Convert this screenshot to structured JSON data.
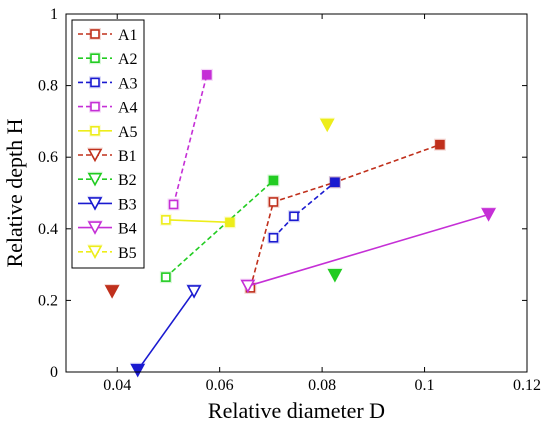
{
  "chart_data": {
    "type": "scatter",
    "xlabel": "Relative diameter D",
    "ylabel": "Relative depth H",
    "xlim": [
      0.03,
      0.12
    ],
    "ylim": [
      0,
      1
    ],
    "xticks": [
      0.04,
      0.06,
      0.08,
      0.1,
      0.12
    ],
    "xtick_labels": [
      "0.04",
      "0.06",
      "0.08",
      "0.1",
      "0.12"
    ],
    "yticks": [
      0,
      0.2,
      0.4,
      0.6,
      0.8,
      1
    ],
    "ytick_labels": [
      "0",
      "0.2",
      "0.4",
      "0.6",
      "0.8",
      "1"
    ],
    "grid": false,
    "legend_position": "top-left",
    "series": [
      {
        "name": "A1",
        "color": "#c0301c",
        "marker": "square",
        "line": "dashed",
        "points": [
          [
            0.066,
            0.235
          ],
          [
            0.0705,
            0.475
          ],
          [
            0.0825,
            0.53
          ],
          [
            0.103,
            0.635
          ]
        ],
        "filled": [
          false,
          false,
          true,
          true
        ]
      },
      {
        "name": "A2",
        "color": "#22cc22",
        "marker": "square",
        "line": "dashed",
        "points": [
          [
            0.0495,
            0.265
          ],
          [
            0.0705,
            0.535
          ]
        ],
        "filled": [
          false,
          true
        ]
      },
      {
        "name": "A3",
        "color": "#1a1ad0",
        "marker": "square",
        "line": "dashed",
        "points": [
          [
            0.0705,
            0.375
          ],
          [
            0.0745,
            0.435
          ],
          [
            0.0825,
            0.53
          ]
        ],
        "filled": [
          false,
          false,
          true
        ]
      },
      {
        "name": "A4",
        "color": "#c52fd6",
        "marker": "square",
        "line": "dashed",
        "points": [
          [
            0.051,
            0.468
          ],
          [
            0.0575,
            0.83
          ]
        ],
        "filled": [
          false,
          true
        ]
      },
      {
        "name": "A5",
        "color": "#eded1a",
        "marker": "square",
        "line": "solid",
        "points": [
          [
            0.0495,
            0.425
          ],
          [
            0.062,
            0.418
          ]
        ],
        "filled": [
          false,
          true
        ]
      },
      {
        "name": "B1",
        "color": "#c0301c",
        "marker": "triangle-down",
        "line": "none",
        "points": [
          [
            0.039,
            0.225
          ]
        ],
        "filled": [
          true
        ]
      },
      {
        "name": "B2",
        "color": "#22cc22",
        "marker": "triangle-down",
        "line": "none",
        "points": [
          [
            0.0825,
            0.27
          ]
        ],
        "filled": [
          true
        ]
      },
      {
        "name": "B3",
        "color": "#1a1ad0",
        "marker": "triangle-down",
        "line": "solid",
        "points": [
          [
            0.044,
            0.005
          ],
          [
            0.055,
            0.225
          ]
        ],
        "filled": [
          true,
          false
        ]
      },
      {
        "name": "B4",
        "color": "#c52fd6",
        "marker": "triangle-down",
        "line": "solid",
        "points": [
          [
            0.0655,
            0.24
          ],
          [
            0.1125,
            0.44
          ]
        ],
        "filled": [
          false,
          true
        ]
      },
      {
        "name": "B5",
        "color": "#eded1a",
        "marker": "triangle-down",
        "line": "none",
        "points": [
          [
            0.081,
            0.69
          ]
        ],
        "filled": [
          true
        ]
      }
    ]
  }
}
